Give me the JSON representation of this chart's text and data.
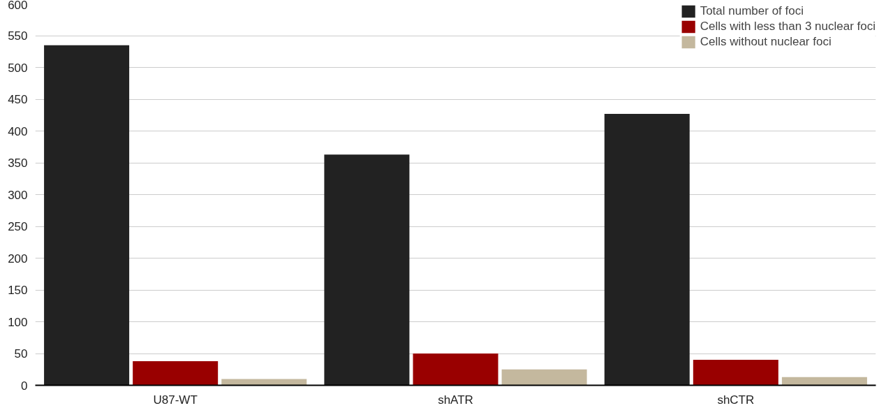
{
  "chart_data": {
    "type": "bar",
    "categories": [
      "U87-WT",
      "shATR",
      "shCTR"
    ],
    "series": [
      {
        "name": "Total number of foci",
        "color": "#222222",
        "values": [
          535,
          363,
          427
        ]
      },
      {
        "name": "Cells with less than 3 nuclear foci",
        "color": "#990000",
        "values": [
          38,
          50,
          40
        ]
      },
      {
        "name": "Cells without nuclear foci",
        "color": "#c4b89e",
        "values": [
          10,
          25,
          13
        ]
      }
    ],
    "ylim": [
      0,
      600
    ],
    "yticks": [
      0,
      50,
      100,
      150,
      200,
      250,
      300,
      350,
      400,
      450,
      500,
      550,
      600
    ],
    "grid": "y",
    "legend": "top right"
  }
}
